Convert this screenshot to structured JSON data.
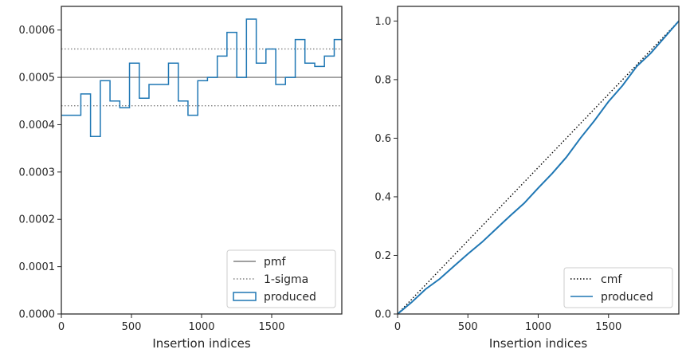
{
  "chart_data": [
    {
      "type": "step",
      "xlabel": "Insertion indices",
      "ylabel": "",
      "xlim": [
        0,
        2000
      ],
      "ylim": [
        0,
        0.00065
      ],
      "xticks": [
        0,
        500,
        1000,
        1500
      ],
      "xtick_labels": [
        "0",
        "500",
        "1000",
        "1500"
      ],
      "yticks": [
        0,
        0.0001,
        0.0002,
        0.0003,
        0.0004,
        0.0005,
        0.0006
      ],
      "ytick_labels": [
        "0.0000",
        "0.0001",
        "0.0002",
        "0.0003",
        "0.0004",
        "0.0005",
        "0.0006"
      ],
      "legend_position": "lower right",
      "pmf": 0.0005,
      "sigma_band": [
        0.00044,
        0.00056
      ],
      "bin_edges": [
        0,
        139,
        208,
        278,
        347,
        417,
        486,
        556,
        625,
        695,
        764,
        834,
        903,
        973,
        1042,
        1112,
        1181,
        1251,
        1320,
        1390,
        1459,
        1529,
        1598,
        1668,
        1737,
        1807,
        1876,
        1946,
        2000
      ],
      "produced": [
        0.00042,
        0.000465,
        0.000375,
        0.000493,
        0.00045,
        0.000436,
        0.00053,
        0.000456,
        0.000485,
        0.000485,
        0.00053,
        0.00045,
        0.00042,
        0.000493,
        0.0005,
        0.000545,
        0.000595,
        0.0005,
        0.000623,
        0.00053,
        0.00056,
        0.000485,
        0.0005,
        0.00058,
        0.00053,
        0.000523,
        0.000545,
        0.00058
      ],
      "legend": [
        {
          "label": "pmf",
          "style": "solid",
          "color": "#808080"
        },
        {
          "label": "1-sigma",
          "style": "dotted",
          "color": "#808080"
        },
        {
          "label": "produced",
          "style": "step",
          "color": "#1f77b4"
        }
      ]
    },
    {
      "type": "line",
      "xlabel": "Insertion indices",
      "ylabel": "",
      "xlim": [
        0,
        2000
      ],
      "ylim": [
        0,
        1.05
      ],
      "xticks": [
        0,
        500,
        1000,
        1500
      ],
      "xtick_labels": [
        "0",
        "500",
        "1000",
        "1500"
      ],
      "yticks": [
        0,
        0.2,
        0.4,
        0.6,
        0.8,
        1.0
      ],
      "ytick_labels": [
        "0.0",
        "0.2",
        "0.4",
        "0.6",
        "0.8",
        "1.0"
      ],
      "legend_position": "lower right",
      "cmf": {
        "x": [
          0,
          2000
        ],
        "y": [
          0,
          1
        ]
      },
      "produced": {
        "x": [
          0,
          100,
          200,
          300,
          400,
          500,
          600,
          700,
          800,
          900,
          1000,
          1100,
          1200,
          1300,
          1400,
          1500,
          1600,
          1700,
          1800,
          1900,
          2000
        ],
        "y": [
          0,
          0.04,
          0.085,
          0.12,
          0.163,
          0.205,
          0.245,
          0.29,
          0.335,
          0.378,
          0.43,
          0.48,
          0.535,
          0.6,
          0.66,
          0.725,
          0.78,
          0.845,
          0.89,
          0.945,
          1.0
        ]
      },
      "legend": [
        {
          "label": "cmf",
          "style": "dotted",
          "color": "#000000"
        },
        {
          "label": "produced",
          "style": "line",
          "color": "#1f77b4"
        }
      ]
    }
  ]
}
